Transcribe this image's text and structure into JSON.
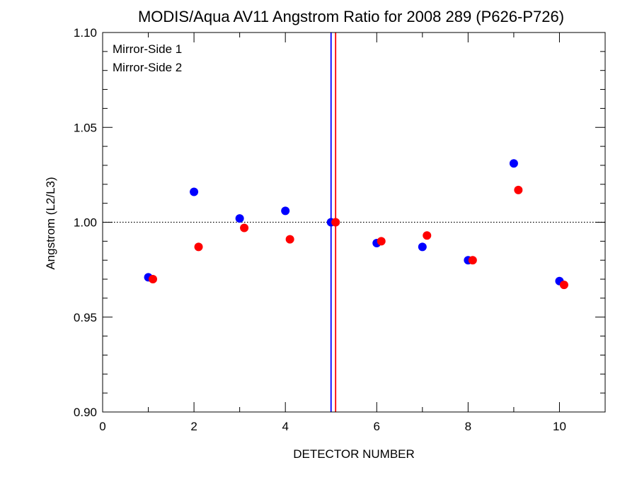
{
  "chart_data": {
    "type": "scatter",
    "title": "MODIS/Aqua AV11 Angstrom Ratio for 2008 289 (P626-P726)",
    "xlabel": "DETECTOR NUMBER",
    "ylabel": "Angstrom (L2/L3)",
    "xlim": [
      0,
      11
    ],
    "ylim": [
      0.9,
      1.1
    ],
    "x_ticks": [
      0,
      2,
      4,
      6,
      8,
      10
    ],
    "x_tick_labels": [
      "0",
      "2",
      "4",
      "6",
      "8",
      "10"
    ],
    "y_ticks": [
      0.9,
      0.95,
      1.0,
      1.05,
      1.1
    ],
    "y_tick_labels": [
      "0.90",
      "0.95",
      "1.00",
      "1.05",
      "1.10"
    ],
    "reference_line_y": 1.0,
    "vertical_lines": [
      {
        "x": 5.0,
        "color": "#0000ff"
      },
      {
        "x": 5.1,
        "color": "#ff0000"
      }
    ],
    "legend_position": "top-left",
    "grid": false,
    "series": [
      {
        "name": "Mirror-Side 1",
        "color": "#0000ff",
        "x": [
          1,
          2,
          3,
          4,
          5,
          6,
          7,
          8,
          9,
          10
        ],
        "y": [
          0.971,
          1.016,
          1.002,
          1.006,
          1.0,
          0.989,
          0.987,
          0.98,
          1.031,
          0.969
        ]
      },
      {
        "name": "Mirror-Side 2",
        "color": "#ff0000",
        "x": [
          1.1,
          2.1,
          3.1,
          4.1,
          5.1,
          6.1,
          7.1,
          8.1,
          9.1,
          10.1
        ],
        "y": [
          0.97,
          0.987,
          0.997,
          0.991,
          1.0,
          0.99,
          0.993,
          0.98,
          1.017,
          0.967
        ]
      }
    ]
  }
}
